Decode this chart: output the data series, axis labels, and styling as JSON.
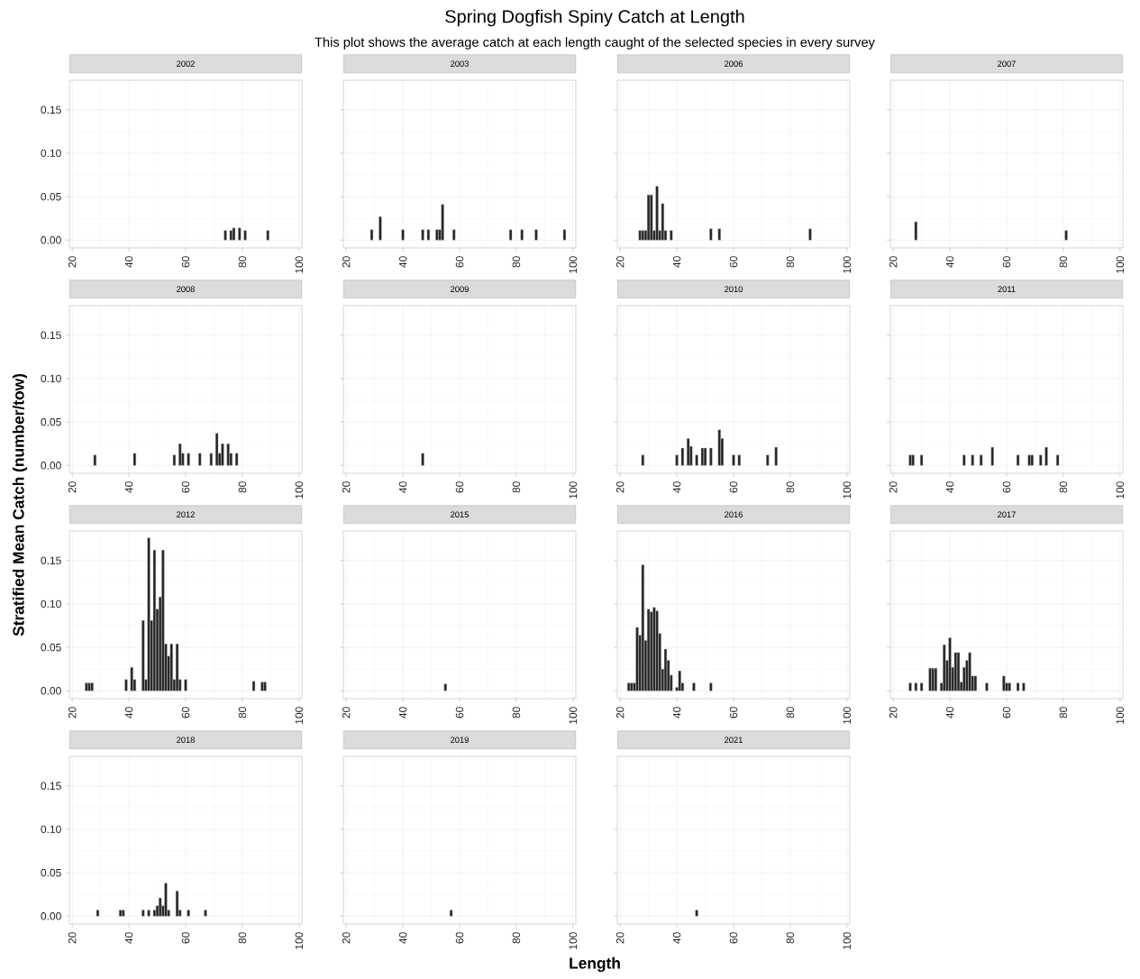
{
  "chart_data": [
    {
      "type": "other",
      "title": "Spring Dogfish Spiny Catch at Length",
      "subtitle": "This plot shows the average catch at each length caught of the selected species in every survey",
      "xlabel": "Length",
      "ylabel": "Stratified Mean Catch (number/tow)"
    },
    {
      "type": "bar",
      "title": "2002",
      "color": "#222222",
      "grid": true,
      "xlim": [
        19,
        101
      ],
      "xticks": [
        20,
        40,
        60,
        80,
        100
      ],
      "ylim": [
        -0.009,
        0.184
      ],
      "yticks": [
        {
          "value": 0,
          "label": "0.00"
        },
        {
          "value": 0.05,
          "label": "0.05"
        },
        {
          "value": 0.1,
          "label": "0.10"
        },
        {
          "value": 0.15,
          "label": "0.15"
        }
      ],
      "x": [
        74,
        76,
        77,
        79,
        81,
        89
      ],
      "values": [
        0.011,
        0.011,
        0.014,
        0.014,
        0.011,
        0.011
      ]
    },
    {
      "type": "bar",
      "title": "2003",
      "color": "#222222",
      "grid": true,
      "tick_labels": "x",
      "xlim": [
        19,
        101
      ],
      "xticks": [
        20,
        40,
        60,
        80,
        100
      ],
      "ylim": [
        -0.009,
        0.184
      ],
      "yticks": [
        0,
        0.05,
        0.1,
        0.15
      ],
      "x": [
        29,
        32,
        40,
        47,
        49,
        52,
        53,
        54,
        58,
        78,
        82,
        87,
        97
      ],
      "values": [
        0.012,
        0.027,
        0.012,
        0.012,
        0.012,
        0.012,
        0.012,
        0.041,
        0.012,
        0.012,
        0.012,
        0.012,
        0.012
      ]
    },
    {
      "type": "bar",
      "title": "2006",
      "color": "#222222",
      "grid": true,
      "tick_labels": "x",
      "xlim": [
        19,
        101
      ],
      "xticks": [
        20,
        40,
        60,
        80,
        100
      ],
      "ylim": [
        -0.009,
        0.184
      ],
      "yticks": [
        0,
        0.05,
        0.1,
        0.15
      ],
      "x": [
        27,
        28,
        29,
        30,
        31,
        32,
        33,
        34,
        35,
        36,
        38,
        52,
        55,
        87
      ],
      "values": [
        0.011,
        0.011,
        0.011,
        0.052,
        0.052,
        0.011,
        0.062,
        0.011,
        0.042,
        0.011,
        0.011,
        0.013,
        0.013,
        0.013
      ]
    },
    {
      "type": "bar",
      "title": "2007",
      "color": "#222222",
      "grid": true,
      "tick_labels": "x",
      "xlim": [
        19,
        101
      ],
      "xticks": [
        20,
        40,
        60,
        80,
        100
      ],
      "ylim": [
        -0.009,
        0.184
      ],
      "yticks": [
        0,
        0.05,
        0.1,
        0.15
      ],
      "x": [
        28,
        81
      ],
      "values": [
        0.021,
        0.011
      ]
    },
    {
      "type": "bar",
      "title": "2008",
      "color": "#222222",
      "grid": true,
      "xlim": [
        19,
        101
      ],
      "xticks": [
        20,
        40,
        60,
        80,
        100
      ],
      "ylim": [
        -0.009,
        0.184
      ],
      "yticks": [
        {
          "value": 0,
          "label": "0.00"
        },
        {
          "value": 0.05,
          "label": "0.05"
        },
        {
          "value": 0.1,
          "label": "0.10"
        },
        {
          "value": 0.15,
          "label": "0.15"
        }
      ],
      "x": [
        28,
        42,
        56,
        58,
        59,
        61,
        65,
        69,
        71,
        72,
        73,
        75,
        76,
        78
      ],
      "values": [
        0.012,
        0.014,
        0.012,
        0.025,
        0.014,
        0.014,
        0.014,
        0.014,
        0.037,
        0.014,
        0.025,
        0.025,
        0.014,
        0.014
      ]
    },
    {
      "type": "bar",
      "title": "2009",
      "color": "#222222",
      "grid": true,
      "tick_labels": "x",
      "xlim": [
        19,
        101
      ],
      "xticks": [
        20,
        40,
        60,
        80,
        100
      ],
      "ylim": [
        -0.009,
        0.184
      ],
      "yticks": [
        0,
        0.05,
        0.1,
        0.15
      ],
      "x": [
        47
      ],
      "values": [
        0.014
      ]
    },
    {
      "type": "bar",
      "title": "2010",
      "color": "#222222",
      "grid": true,
      "tick_labels": "x",
      "xlim": [
        19,
        101
      ],
      "xticks": [
        20,
        40,
        60,
        80,
        100
      ],
      "ylim": [
        -0.009,
        0.184
      ],
      "yticks": [
        0,
        0.05,
        0.1,
        0.15
      ],
      "x": [
        28,
        40,
        42,
        44,
        45,
        47,
        49,
        50,
        52,
        55,
        56,
        60,
        62,
        72,
        75
      ],
      "values": [
        0.012,
        0.012,
        0.02,
        0.031,
        0.022,
        0.012,
        0.02,
        0.02,
        0.02,
        0.041,
        0.031,
        0.012,
        0.012,
        0.012,
        0.021
      ]
    },
    {
      "type": "bar",
      "title": "2011",
      "color": "#222222",
      "grid": true,
      "tick_labels": "x",
      "xlim": [
        19,
        101
      ],
      "xticks": [
        20,
        40,
        60,
        80,
        100
      ],
      "ylim": [
        -0.009,
        0.184
      ],
      "yticks": [
        0,
        0.05,
        0.1,
        0.15
      ],
      "x": [
        26,
        27,
        30,
        45,
        48,
        51,
        55,
        64,
        68,
        69,
        72,
        74,
        78
      ],
      "values": [
        0.012,
        0.012,
        0.012,
        0.012,
        0.012,
        0.012,
        0.021,
        0.012,
        0.012,
        0.012,
        0.012,
        0.021,
        0.012
      ]
    },
    {
      "type": "bar",
      "title": "2012",
      "color": "#222222",
      "grid": true,
      "xlim": [
        19,
        101
      ],
      "xticks": [
        20,
        40,
        60,
        80,
        100
      ],
      "ylim": [
        -0.009,
        0.184
      ],
      "yticks": [
        {
          "value": 0,
          "label": "0.00"
        },
        {
          "value": 0.05,
          "label": "0.05"
        },
        {
          "value": 0.1,
          "label": "0.10"
        },
        {
          "value": 0.15,
          "label": "0.15"
        }
      ],
      "x": [
        25,
        26,
        27,
        39,
        41,
        42,
        45,
        46,
        47,
        48,
        49,
        50,
        51,
        52,
        53,
        54,
        55,
        56,
        57,
        58,
        60,
        84,
        87,
        88
      ],
      "values": [
        0.009,
        0.009,
        0.009,
        0.013,
        0.027,
        0.013,
        0.081,
        0.013,
        0.176,
        0.081,
        0.162,
        0.094,
        0.108,
        0.162,
        0.054,
        0.04,
        0.054,
        0.013,
        0.054,
        0.013,
        0.013,
        0.011,
        0.01,
        0.01
      ]
    },
    {
      "type": "bar",
      "title": "2015",
      "color": "#222222",
      "grid": true,
      "tick_labels": "x",
      "xlim": [
        19,
        101
      ],
      "xticks": [
        20,
        40,
        60,
        80,
        100
      ],
      "ylim": [
        -0.009,
        0.184
      ],
      "yticks": [
        0,
        0.05,
        0.1,
        0.15
      ],
      "x": [
        55
      ],
      "values": [
        0.008
      ]
    },
    {
      "type": "bar",
      "title": "2016",
      "color": "#222222",
      "grid": true,
      "tick_labels": "x",
      "xlim": [
        19,
        101
      ],
      "xticks": [
        20,
        40,
        60,
        80,
        100
      ],
      "ylim": [
        -0.009,
        0.184
      ],
      "yticks": [
        0,
        0.05,
        0.1,
        0.15
      ],
      "x": [
        23,
        24,
        25,
        26,
        27,
        28,
        29,
        30,
        31,
        32,
        33,
        34,
        35,
        36,
        37,
        38,
        40,
        41,
        42,
        46,
        52
      ],
      "values": [
        0.009,
        0.009,
        0.009,
        0.073,
        0.064,
        0.145,
        0.058,
        0.094,
        0.091,
        0.096,
        0.092,
        0.066,
        0.025,
        0.048,
        0.035,
        0.018,
        0.004,
        0.023,
        0.009,
        0.009,
        0.009
      ]
    },
    {
      "type": "bar",
      "title": "2017",
      "color": "#222222",
      "grid": true,
      "tick_labels": "x",
      "xlim": [
        19,
        101
      ],
      "xticks": [
        20,
        40,
        60,
        80,
        100
      ],
      "ylim": [
        -0.009,
        0.184
      ],
      "yticks": [
        0,
        0.05,
        0.1,
        0.15
      ],
      "x": [
        26,
        28,
        30,
        33,
        34,
        35,
        37,
        38,
        39,
        40,
        41,
        42,
        43,
        44,
        45,
        46,
        47,
        48,
        49,
        53,
        59,
        60,
        61,
        64,
        66
      ],
      "values": [
        0.009,
        0.009,
        0.009,
        0.026,
        0.026,
        0.026,
        0.009,
        0.053,
        0.035,
        0.061,
        0.027,
        0.044,
        0.044,
        0.01,
        0.027,
        0.035,
        0.044,
        0.017,
        0.017,
        0.009,
        0.017,
        0.009,
        0.009,
        0.009,
        0.009
      ]
    },
    {
      "type": "bar",
      "title": "2018",
      "color": "#222222",
      "grid": true,
      "xlim": [
        19,
        101
      ],
      "xticks": [
        20,
        40,
        60,
        80,
        100
      ],
      "ylim": [
        -0.009,
        0.184
      ],
      "yticks": [
        {
          "value": 0,
          "label": "0.00"
        },
        {
          "value": 0.05,
          "label": "0.05"
        },
        {
          "value": 0.1,
          "label": "0.10"
        },
        {
          "value": 0.15,
          "label": "0.15"
        }
      ],
      "x": [
        29,
        37,
        38,
        45,
        47,
        49,
        50,
        51,
        52,
        53,
        54,
        57,
        58,
        61,
        67
      ],
      "values": [
        0.007,
        0.007,
        0.007,
        0.007,
        0.007,
        0.007,
        0.012,
        0.021,
        0.012,
        0.038,
        0.007,
        0.029,
        0.007,
        0.007,
        0.007
      ]
    },
    {
      "type": "bar",
      "title": "2019",
      "color": "#222222",
      "grid": true,
      "tick_labels": "x",
      "xlim": [
        19,
        101
      ],
      "xticks": [
        20,
        40,
        60,
        80,
        100
      ],
      "ylim": [
        -0.009,
        0.184
      ],
      "yticks": [
        0,
        0.05,
        0.1,
        0.15
      ],
      "x": [
        57
      ],
      "values": [
        0.007
      ]
    },
    {
      "type": "bar",
      "title": "2021",
      "color": "#222222",
      "grid": true,
      "tick_labels": "x",
      "xlim": [
        19,
        101
      ],
      "xticks": [
        20,
        40,
        60,
        80,
        100
      ],
      "ylim": [
        -0.009,
        0.184
      ],
      "yticks": [
        0,
        0.05,
        0.1,
        0.15
      ],
      "x": [
        47
      ],
      "values": [
        0.007
      ]
    }
  ]
}
